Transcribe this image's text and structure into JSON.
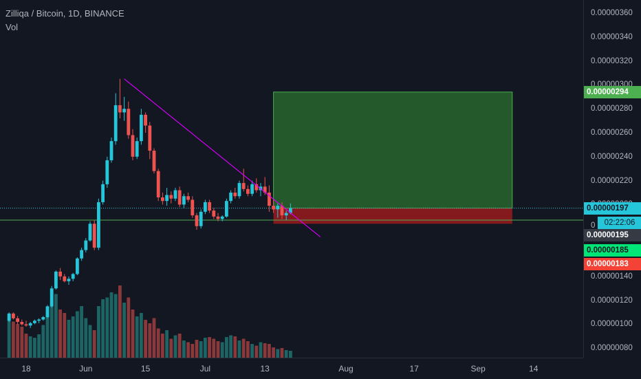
{
  "header": {
    "title": "Zilliqa / Bitcoin, 1D, BINANCE",
    "volume_label": "Vol"
  },
  "colors": {
    "background": "#131722",
    "up": "#26c6da",
    "down": "#ef5350",
    "vol_up": "#26a69a",
    "vol_down": "#ef5350",
    "trendline": "#d500f9",
    "target_zone": "#2e7d32",
    "stop_zone": "#b71c1c",
    "support_line": "#4caf50",
    "last_price_tag": "#26c6da",
    "current_tag": "#363a45",
    "target_tag": "#4caf50",
    "entry_tag": "#00e676",
    "stop_tag": "#f44336"
  },
  "price_tags": {
    "target": "0.00000294",
    "last": "0.00000197",
    "countdown": "02:22:06",
    "current": "0.00000195",
    "entry": "0.00000185",
    "stop": "0.00000183"
  },
  "chart_data": {
    "type": "candlestick",
    "title": "Zilliqa / Bitcoin, 1D, BINANCE",
    "y_ticks": [
      "0.00000080",
      "0.00000100",
      "0.00000120",
      "0.00000140",
      "0.00000200",
      "0.00000220",
      "0.00000240",
      "0.00000260",
      "0.00000280",
      "0.00000300",
      "0.00000320",
      "0.00000340",
      "0.00000360"
    ],
    "ylim": [
      7.5e-07,
      3.68e-06
    ],
    "x_ticks": [
      "18",
      "Jun",
      "15",
      "Jul",
      "13",
      "Aug",
      "17",
      "Sep",
      "14"
    ],
    "dates": [
      "2020-05-14",
      "2020-05-15",
      "2020-05-16",
      "2020-05-17",
      "2020-05-18",
      "2020-05-19",
      "2020-05-20",
      "2020-05-21",
      "2020-05-22",
      "2020-05-23",
      "2020-05-24",
      "2020-05-25",
      "2020-05-26",
      "2020-05-27",
      "2020-05-28",
      "2020-05-29",
      "2020-05-30",
      "2020-05-31",
      "2020-06-01",
      "2020-06-02",
      "2020-06-03",
      "2020-06-04",
      "2020-06-05",
      "2020-06-06",
      "2020-06-07",
      "2020-06-08",
      "2020-06-09",
      "2020-06-10",
      "2020-06-11",
      "2020-06-12",
      "2020-06-13",
      "2020-06-14",
      "2020-06-15",
      "2020-06-16",
      "2020-06-17",
      "2020-06-18",
      "2020-06-19",
      "2020-06-20",
      "2020-06-21",
      "2020-06-22",
      "2020-06-23",
      "2020-06-24",
      "2020-06-25",
      "2020-06-26",
      "2020-06-27",
      "2020-06-28",
      "2020-06-29",
      "2020-06-30",
      "2020-07-01",
      "2020-07-02",
      "2020-07-03",
      "2020-07-04",
      "2020-07-05",
      "2020-07-06",
      "2020-07-07",
      "2020-07-08",
      "2020-07-09",
      "2020-07-10",
      "2020-07-11",
      "2020-07-12",
      "2020-07-13",
      "2020-07-14",
      "2020-07-15",
      "2020-07-16",
      "2020-07-17",
      "2020-07-18",
      "2020-07-19"
    ],
    "ohlc": [
      [
        1.03,
        1.1,
        1.02,
        1.09
      ],
      [
        1.09,
        1.1,
        1.04,
        1.05
      ],
      [
        1.05,
        1.07,
        1.0,
        1.02
      ],
      [
        1.02,
        1.04,
        0.99,
        1.0
      ],
      [
        1.0,
        1.03,
        0.98,
        0.99
      ],
      [
        0.99,
        1.02,
        0.97,
        1.01
      ],
      [
        1.01,
        1.04,
        1.0,
        1.03
      ],
      [
        1.03,
        1.05,
        1.01,
        1.04
      ],
      [
        1.04,
        1.07,
        1.03,
        1.06
      ],
      [
        1.06,
        1.16,
        1.05,
        1.15
      ],
      [
        1.15,
        1.32,
        1.14,
        1.3
      ],
      [
        1.3,
        1.45,
        1.29,
        1.44
      ],
      [
        1.44,
        1.47,
        1.37,
        1.4
      ],
      [
        1.4,
        1.42,
        1.35,
        1.36
      ],
      [
        1.36,
        1.4,
        1.33,
        1.38
      ],
      [
        1.38,
        1.43,
        1.36,
        1.42
      ],
      [
        1.42,
        1.56,
        1.41,
        1.55
      ],
      [
        1.55,
        1.64,
        1.53,
        1.62
      ],
      [
        1.62,
        1.72,
        1.6,
        1.7
      ],
      [
        1.7,
        1.86,
        1.69,
        1.84
      ],
      [
        1.84,
        1.87,
        1.62,
        1.64
      ],
      [
        1.64,
        2.05,
        1.62,
        2.02
      ],
      [
        2.02,
        2.2,
        2.0,
        2.17
      ],
      [
        2.17,
        2.4,
        2.14,
        2.37
      ],
      [
        2.37,
        2.56,
        2.35,
        2.53
      ],
      [
        2.53,
        2.93,
        2.5,
        2.83
      ],
      [
        2.83,
        3.05,
        2.72,
        2.77
      ],
      [
        2.77,
        2.9,
        2.7,
        2.8
      ],
      [
        2.8,
        2.86,
        2.55,
        2.58
      ],
      [
        2.58,
        2.63,
        2.37,
        2.4
      ],
      [
        2.4,
        2.56,
        2.38,
        2.53
      ],
      [
        2.53,
        2.8,
        2.5,
        2.75
      ],
      [
        2.75,
        2.77,
        2.6,
        2.66
      ],
      [
        2.66,
        2.69,
        2.38,
        2.45
      ],
      [
        2.45,
        2.47,
        2.26,
        2.28
      ],
      [
        2.28,
        2.3,
        2.03,
        2.06
      ],
      [
        2.06,
        2.1,
        2.0,
        2.03
      ],
      [
        2.03,
        2.14,
        1.99,
        2.08
      ],
      [
        2.08,
        2.11,
        2.01,
        2.05
      ],
      [
        2.05,
        2.14,
        2.03,
        2.12
      ],
      [
        2.12,
        2.15,
        1.98,
        2.0
      ],
      [
        2.0,
        2.09,
        1.97,
        2.07
      ],
      [
        2.07,
        2.1,
        2.02,
        2.04
      ],
      [
        2.04,
        2.07,
        1.89,
        1.91
      ],
      [
        1.91,
        1.93,
        1.79,
        1.82
      ],
      [
        1.82,
        1.96,
        1.8,
        1.94
      ],
      [
        1.94,
        2.04,
        1.92,
        2.02
      ],
      [
        2.02,
        2.04,
        1.93,
        1.95
      ],
      [
        1.95,
        1.97,
        1.88,
        1.9
      ],
      [
        1.9,
        1.93,
        1.86,
        1.88
      ],
      [
        1.88,
        1.91,
        1.86,
        1.9
      ],
      [
        1.9,
        2.05,
        1.89,
        2.03
      ],
      [
        2.03,
        2.12,
        2.01,
        2.1
      ],
      [
        2.1,
        2.14,
        2.05,
        2.07
      ],
      [
        2.07,
        2.2,
        2.05,
        2.18
      ],
      [
        2.18,
        2.3,
        2.11,
        2.13
      ],
      [
        2.13,
        2.16,
        2.07,
        2.09
      ],
      [
        2.09,
        2.2,
        2.07,
        2.17
      ],
      [
        2.17,
        2.22,
        2.1,
        2.12
      ],
      [
        2.12,
        2.18,
        2.07,
        2.15
      ],
      [
        2.15,
        2.23,
        2.08,
        2.1
      ],
      [
        2.1,
        2.16,
        1.94,
        1.99
      ],
      [
        1.99,
        2.04,
        1.93,
        1.96
      ],
      [
        1.96,
        2.01,
        1.89,
        1.99
      ],
      [
        1.99,
        2.02,
        1.88,
        1.91
      ],
      [
        1.91,
        1.95,
        1.87,
        1.93
      ],
      [
        1.93,
        2.01,
        1.92,
        1.97
      ]
    ],
    "ohlc_unit": "1e-6",
    "volume": [
      120,
      105,
      98,
      90,
      70,
      62,
      58,
      68,
      95,
      140,
      165,
      185,
      140,
      130,
      110,
      120,
      135,
      150,
      115,
      95,
      80,
      150,
      170,
      175,
      190,
      185,
      210,
      160,
      175,
      140,
      120,
      130,
      110,
      100,
      115,
      85,
      70,
      80,
      55,
      65,
      70,
      50,
      45,
      40,
      52,
      48,
      58,
      60,
      55,
      48,
      45,
      60,
      65,
      62,
      50,
      55,
      48,
      40,
      35,
      45,
      42,
      40,
      30,
      25,
      28,
      22,
      20
    ],
    "trendline": {
      "from": [
        "2020-06-10",
        3.05e-06
      ],
      "to": [
        "2020-07-26",
        1.73e-06
      ]
    },
    "target_zone": {
      "from": "2020-07-15",
      "to": "2020-09-09",
      "top": 2.94e-06,
      "bottom": 1.97e-06
    },
    "stop_zone": {
      "from": "2020-07-15",
      "to": "2020-09-09",
      "top": 1.97e-06,
      "bottom": 1.84e-06
    },
    "support_level": 1.87e-06,
    "last_price": 1.97e-06,
    "grid": false,
    "legend": "none"
  }
}
